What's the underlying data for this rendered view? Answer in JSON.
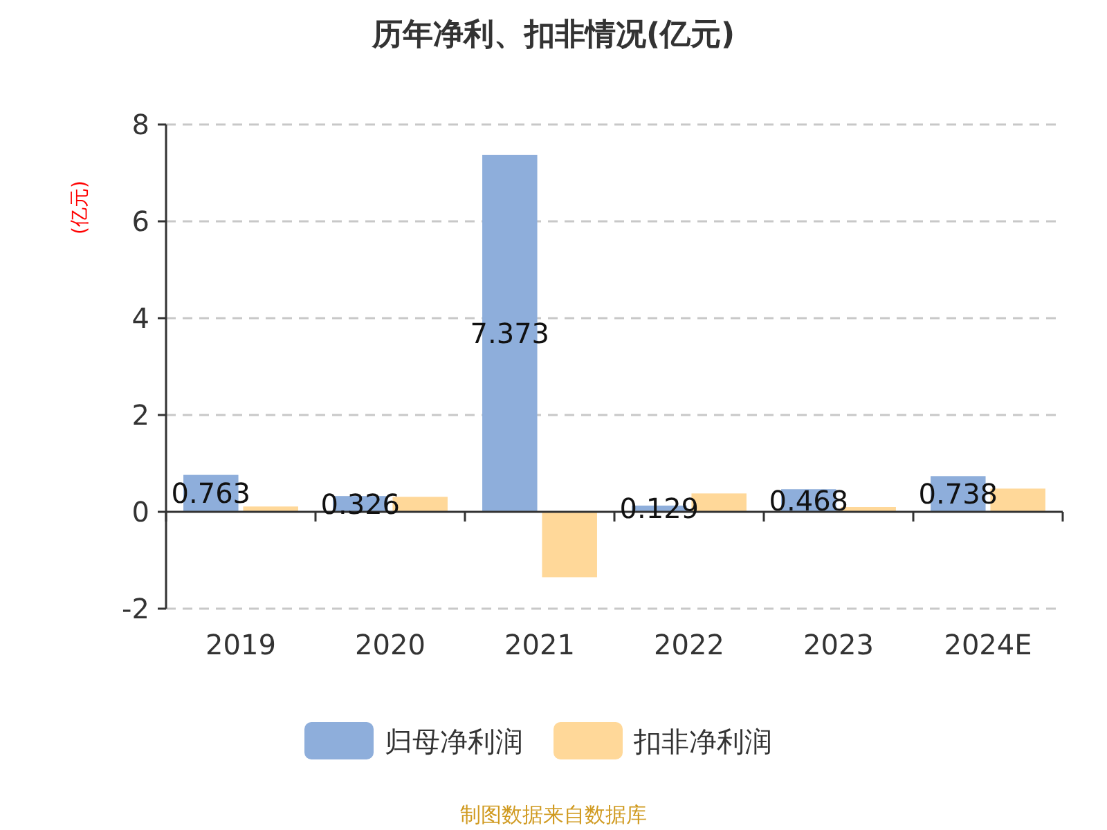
{
  "chart_data": {
    "type": "bar",
    "title": "历年净利、扣非情况(亿元)",
    "ylabel": "(亿元)",
    "categories": [
      "2019",
      "2020",
      "2021",
      "2022",
      "2023",
      "2024E"
    ],
    "series": [
      {
        "name": "归母净利润",
        "color": "#8eaedb",
        "values": [
          0.763,
          0.326,
          7.373,
          0.129,
          0.468,
          0.738
        ],
        "value_labels": [
          "0.763",
          "0.326",
          "7.373",
          "0.129",
          "0.468",
          "0.738"
        ]
      },
      {
        "name": "扣非净利润",
        "color": "#ffd899",
        "values": [
          0.11,
          0.31,
          -1.35,
          0.38,
          0.1,
          0.48
        ]
      }
    ],
    "ylim": [
      -2,
      8
    ],
    "yticks": [
      -2,
      0,
      2,
      4,
      6,
      8
    ],
    "grid": "y",
    "legend": "bottom",
    "annotations": [
      "制图数据来自数据库"
    ]
  }
}
